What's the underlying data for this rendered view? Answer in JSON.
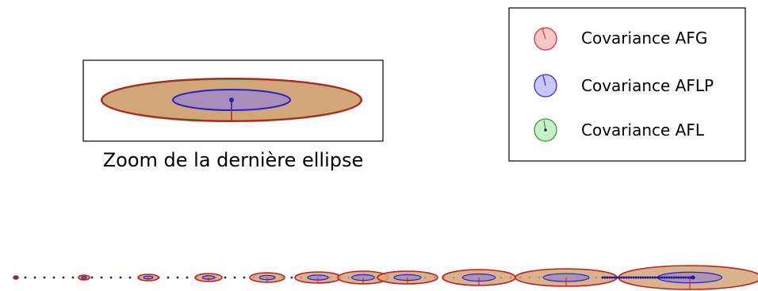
{
  "zoom": {
    "caption": "Zoom de la dernière ellipse"
  },
  "legend": {
    "items": [
      {
        "label": "Covariance AFG",
        "fill": "#f8c8c8",
        "stroke": "#e03030"
      },
      {
        "label": "Covariance AFLP",
        "fill": "#c8c8f8",
        "stroke": "#3030e0"
      },
      {
        "label": "Covariance AFL",
        "fill": "#c8f0c8",
        "stroke": "#30a030"
      }
    ]
  },
  "colors": {
    "afg_outline": "#c0201a",
    "afl_fill": "#d2a679",
    "aflp_fill": "#a98fb8",
    "aflp_outline": "#2222cc",
    "trajectory": "#1a1a99"
  }
}
